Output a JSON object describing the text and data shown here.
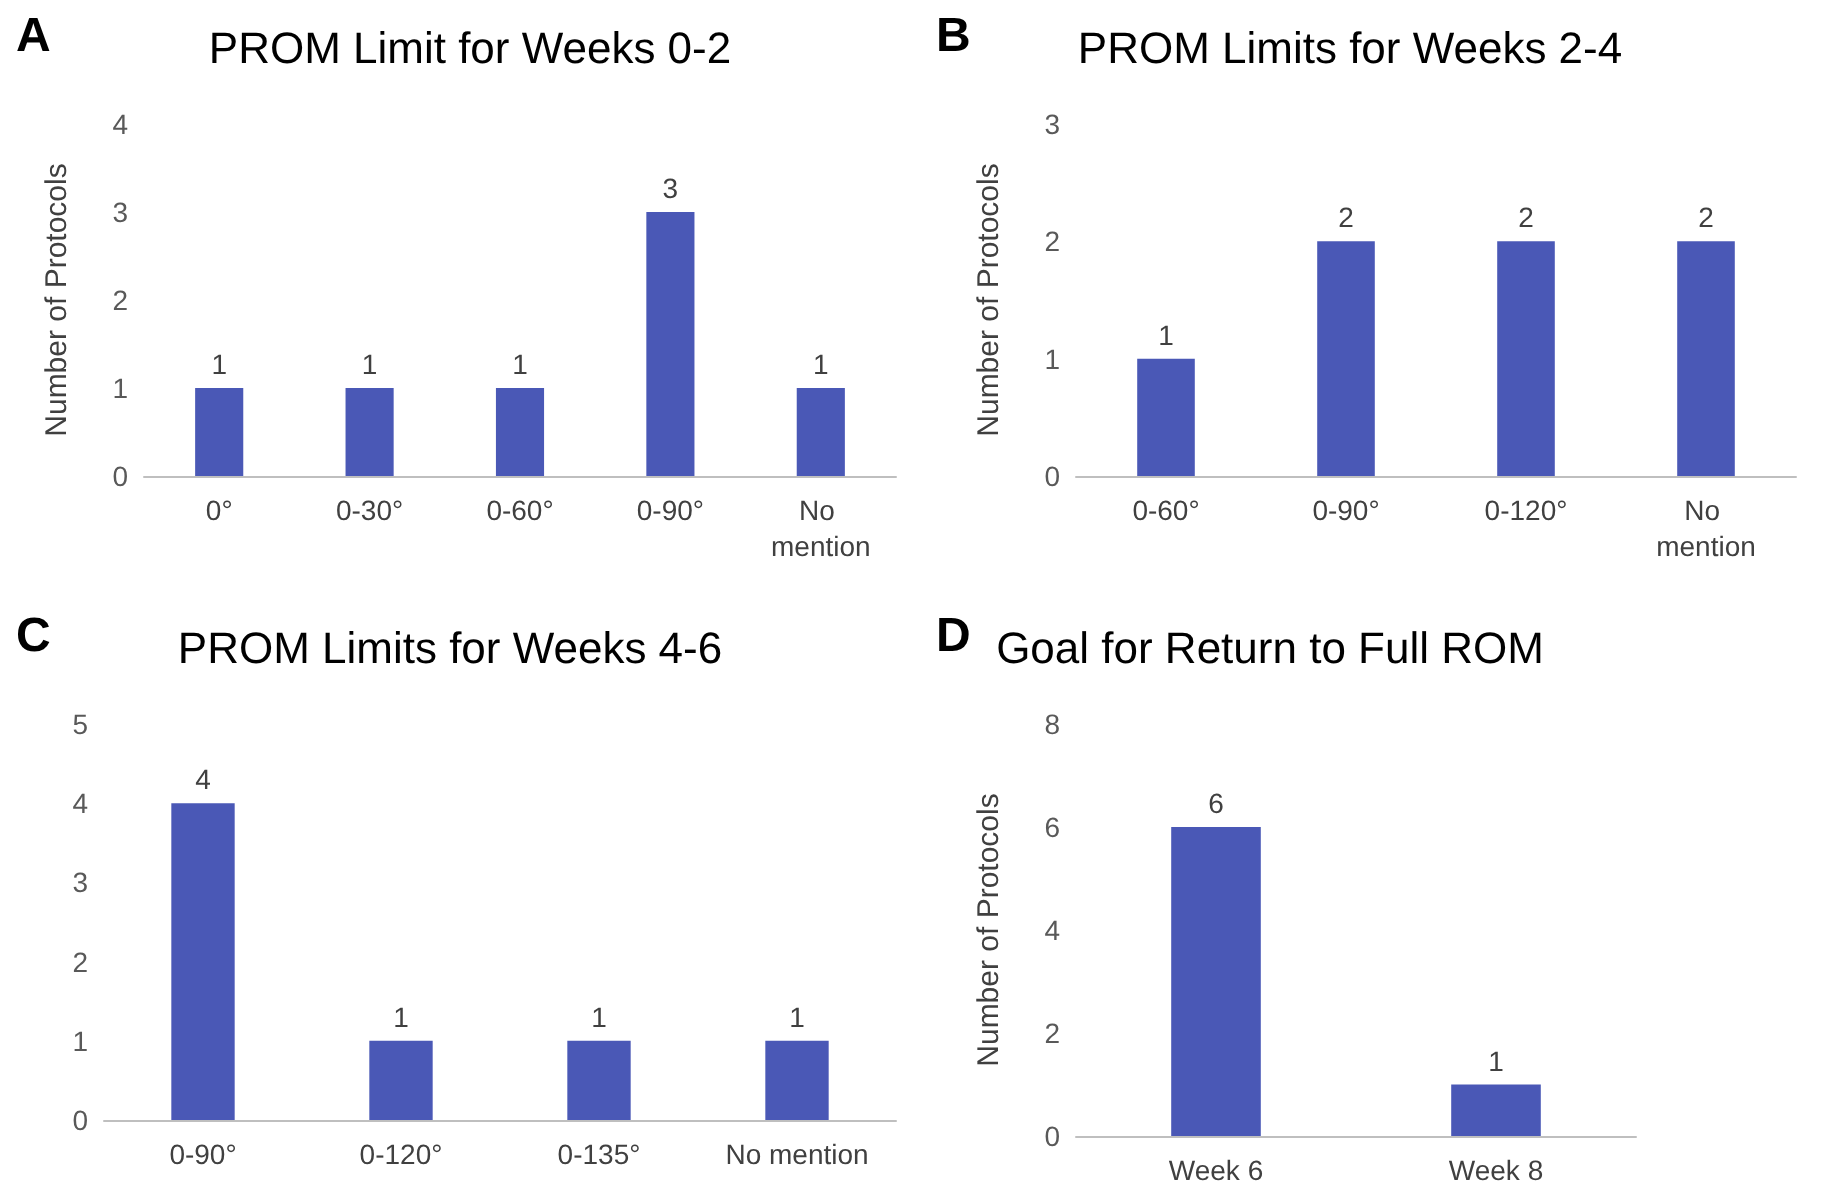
{
  "chart_data": [
    {
      "type": "bar",
      "title": "PROM Limit for Weeks 0-2",
      "ylabel": "Number of Protocols",
      "annotations": [
        "A"
      ],
      "categories": [
        "0°",
        "0-30°",
        "0-60°",
        "0-90°",
        "No mention"
      ],
      "values": [
        1,
        1,
        1,
        3,
        1
      ],
      "color": "#4a58b6",
      "ylim": [
        0,
        4
      ],
      "yticks": [
        0,
        1,
        2,
        3,
        4
      ],
      "grid": false,
      "data_labels": true
    },
    {
      "type": "bar",
      "title": "PROM Limits for Weeks 2-4",
      "ylabel": "Number of Protocols",
      "annotations": [
        "B"
      ],
      "categories": [
        "0-60°",
        "0-90°",
        "0-120°",
        "No mention"
      ],
      "values": [
        1,
        2,
        2,
        2
      ],
      "color": "#4a58b6",
      "ylim": [
        0,
        3
      ],
      "yticks": [
        0,
        1,
        2,
        3
      ],
      "grid": false,
      "data_labels": true
    },
    {
      "type": "bar",
      "title": "PROM Limits for Weeks 4-6",
      "annotations": [
        "C"
      ],
      "categories": [
        "0-90°",
        "0-120°",
        "0-135°",
        "No mention"
      ],
      "values": [
        4,
        1,
        1,
        1
      ],
      "color": "#4a58b6",
      "ylim": [
        0,
        5
      ],
      "yticks": [
        0,
        1,
        2,
        3,
        4,
        5
      ],
      "grid": false,
      "data_labels": true
    },
    {
      "type": "bar",
      "title": "Goal for Return to Full ROM",
      "ylabel": "Number of Protocols",
      "annotations": [
        "D"
      ],
      "categories": [
        "Week 6",
        "Week 8"
      ],
      "values": [
        6,
        1
      ],
      "color": "#4a58b6",
      "ylim": [
        0,
        8
      ],
      "yticks": [
        0,
        2,
        4,
        6,
        8
      ],
      "grid": false,
      "data_labels": true
    }
  ]
}
